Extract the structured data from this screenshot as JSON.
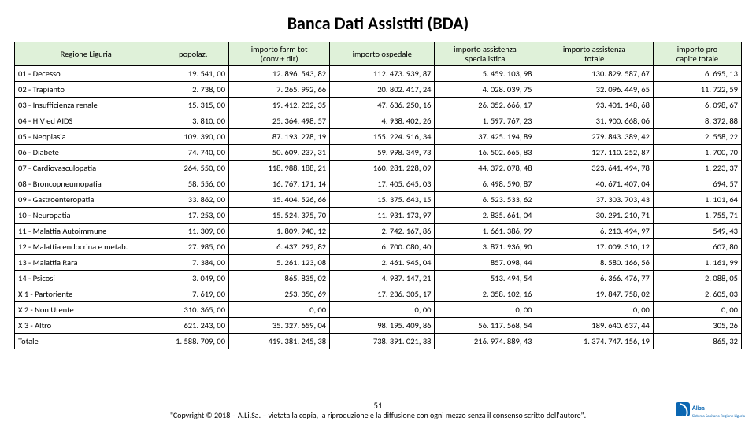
{
  "title": "Banca Dati Assistiti (BDA)",
  "page_number": "51",
  "copyright": "\"Copyright © 2018 – A.Li.Sa. – vietata la copia, la riproduzione e la diffusione con ogni mezzo senza il consenso scritto dell'autore\".",
  "logo": {
    "name": "Alisa",
    "sub": "Sistema Sanitario Regione Liguria"
  },
  "table": {
    "type": "table",
    "header_bg": "#dff1d9",
    "border_color": "#000000",
    "font_size_pt": 10.5,
    "columns": [
      "Regione Liguria",
      "popolaz.",
      "importo farm tot (conv + dir)",
      "importo ospedale",
      "importo assistenza specialistica",
      "importo assistenza totale",
      "importo pro capite totale"
    ],
    "col_align": [
      "left",
      "right",
      "right",
      "right",
      "right",
      "right",
      "right"
    ],
    "rows": [
      [
        "01 - Decesso",
        "19. 541, 00",
        "12. 896. 543, 82",
        "112. 473. 939, 87",
        "5. 459. 103, 98",
        "130. 829. 587, 67",
        "6. 695, 13"
      ],
      [
        "02 - Trapianto",
        "2. 738, 00",
        "7. 265. 992, 66",
        "20. 802. 417, 24",
        "4. 028. 039, 75",
        "32. 096. 449, 65",
        "11. 722, 59"
      ],
      [
        "03 - Insufficienza renale",
        "15. 315, 00",
        "19. 412. 232, 35",
        "47. 636. 250, 16",
        "26. 352. 666, 17",
        "93. 401. 148, 68",
        "6. 098, 67"
      ],
      [
        "04 - HIV ed AIDS",
        "3. 810, 00",
        "25. 364. 498, 57",
        "4. 938. 402, 26",
        "1. 597. 767, 23",
        "31. 900. 668, 06",
        "8. 372, 88"
      ],
      [
        "05 - Neoplasia",
        "109. 390, 00",
        "87. 193. 278, 19",
        "155. 224. 916, 34",
        "37. 425. 194, 89",
        "279. 843. 389, 42",
        "2. 558, 22"
      ],
      [
        "06 - Diabete",
        "74. 740, 00",
        "50. 609. 237, 31",
        "59. 998. 349, 73",
        "16. 502. 665, 83",
        "127. 110. 252, 87",
        "1. 700, 70"
      ],
      [
        "07 - Cardiovasculopatia",
        "264. 550, 00",
        "118. 988. 188, 21",
        "160. 281. 228, 09",
        "44. 372. 078, 48",
        "323. 641. 494, 78",
        "1. 223, 37"
      ],
      [
        "08 - Broncopneumopatia",
        "58. 556, 00",
        "16. 767. 171, 14",
        "17. 405. 645, 03",
        "6. 498. 590, 87",
        "40. 671. 407, 04",
        "694, 57"
      ],
      [
        "09 - Gastroenteropatia",
        "33. 862, 00",
        "15. 404. 526, 66",
        "15. 375. 643, 15",
        "6. 523. 533, 62",
        "37. 303. 703, 43",
        "1. 101, 64"
      ],
      [
        "10 - Neuropatia",
        "17. 253, 00",
        "15. 524. 375, 70",
        "11. 931. 173, 97",
        "2. 835. 661, 04",
        "30. 291. 210, 71",
        "1. 755, 71"
      ],
      [
        "11 - Malattia Autoimmune",
        "11. 309, 00",
        "1. 809. 940, 12",
        "2. 742. 167, 86",
        "1. 661. 386, 99",
        "6. 213. 494, 97",
        "549, 43"
      ],
      [
        "12 - Malattia endocrina e metab.",
        "27. 985, 00",
        "6. 437. 292, 82",
        "6. 700. 080, 40",
        "3. 871. 936, 90",
        "17. 009. 310, 12",
        "607, 80"
      ],
      [
        "13 - Malattia Rara",
        "7. 384, 00",
        "5. 261. 123, 08",
        "2. 461. 945, 04",
        "857. 098, 44",
        "8. 580. 166, 56",
        "1. 161, 99"
      ],
      [
        "14 - Psicosi",
        "3. 049, 00",
        "865. 835, 02",
        "4. 987. 147, 21",
        "513. 494, 54",
        "6. 366. 476, 77",
        "2. 088, 05"
      ],
      [
        "X 1 - Partoriente",
        "7. 619, 00",
        "253. 350, 69",
        "17. 236. 305, 17",
        "2. 358. 102, 16",
        "19. 847. 758, 02",
        "2. 605, 03"
      ],
      [
        "X 2 - Non Utente",
        "310. 365, 00",
        "0, 00",
        "0, 00",
        "0, 00",
        "0, 00",
        "0, 00"
      ],
      [
        "X 3 - Altro",
        "621. 243, 00",
        "35. 327. 659, 04",
        "98. 195. 409, 86",
        "56. 117. 568, 54",
        "189. 640. 637, 44",
        "305, 26"
      ],
      [
        "Totale",
        "1. 588. 709, 00",
        "419. 381. 245, 38",
        "738. 391. 021, 38",
        "216. 974. 889, 43",
        "1. 374. 747. 156, 19",
        "865, 32"
      ]
    ]
  }
}
